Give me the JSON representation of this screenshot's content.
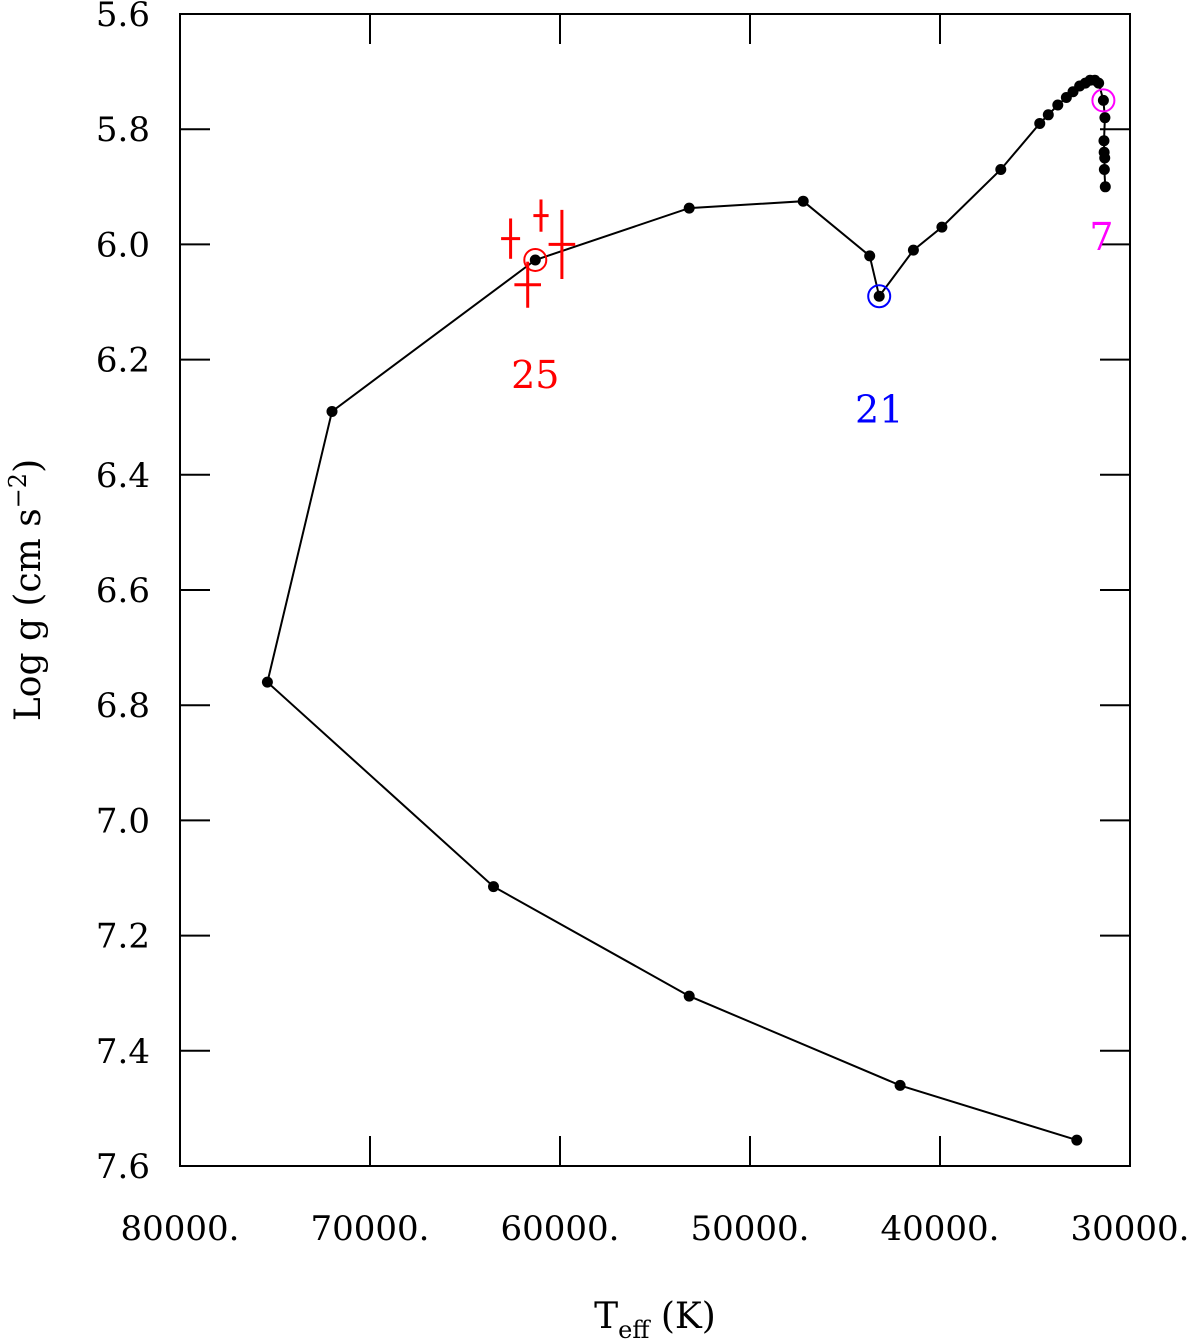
{
  "chart_data": {
    "type": "scatter",
    "title": "",
    "xlabel": {
      "main": "T",
      "sub": "eff",
      "rest": " (K)"
    },
    "ylabel": {
      "main": "Log g  (cm s",
      "sup": "−2",
      "rest": ")"
    },
    "xlim": [
      80000,
      30000
    ],
    "ylim": [
      5.6,
      7.6
    ],
    "y_inverted": true,
    "x_ticks": [
      80000,
      70000,
      60000,
      50000,
      40000,
      30000
    ],
    "x_tick_labels": [
      "80000.",
      "70000.",
      "60000.",
      "50000.",
      "40000.",
      "30000."
    ],
    "y_ticks": [
      5.6,
      5.8,
      6.0,
      6.2,
      6.4,
      6.6,
      6.8,
      7.0,
      7.2,
      7.4,
      7.6
    ],
    "y_tick_labels": [
      "5.6",
      "5.8",
      "6.0",
      "6.2",
      "6.4",
      "6.6",
      "6.8",
      "7.0",
      "7.2",
      "7.4",
      "7.6"
    ],
    "series": [
      {
        "style": "line-with-points",
        "color": "#000000",
        "points": [
          [
            31300,
            5.9
          ],
          [
            31350,
            5.87
          ],
          [
            31330,
            5.85
          ],
          [
            31360,
            5.84
          ],
          [
            31370,
            5.82
          ],
          [
            31320,
            5.78
          ],
          [
            31400,
            5.75
          ],
          [
            31650,
            5.72
          ],
          [
            31850,
            5.715
          ],
          [
            32100,
            5.715
          ],
          [
            32350,
            5.72
          ],
          [
            32650,
            5.725
          ],
          [
            33000,
            5.735
          ],
          [
            33350,
            5.745
          ],
          [
            33800,
            5.758
          ],
          [
            34300,
            5.775
          ],
          [
            34750,
            5.79
          ],
          [
            36800,
            5.87
          ],
          [
            39900,
            5.97
          ],
          [
            41400,
            6.01
          ],
          [
            43200,
            6.09
          ],
          [
            43700,
            6.02
          ],
          [
            47200,
            5.925
          ],
          [
            53200,
            5.937
          ],
          [
            61300,
            6.027
          ],
          [
            72000,
            6.29
          ],
          [
            75400,
            6.76
          ],
          [
            63500,
            7.115
          ],
          [
            53200,
            7.305
          ],
          [
            42100,
            7.46
          ],
          [
            32800,
            7.555
          ]
        ]
      },
      {
        "name": "",
        "style": "error-crosses",
        "color": "#ff0000",
        "crosses": [
          {
            "x": 62600,
            "y": 5.99,
            "dx": 500,
            "dy": 0.035
          },
          {
            "x": 61000,
            "y": 5.95,
            "dx": 400,
            "dy": 0.028
          },
          {
            "x": 61700,
            "y": 6.07,
            "dx": 700,
            "dy": 0.04
          },
          {
            "x": 59900,
            "y": 6.0,
            "dx": 700,
            "dy": 0.06
          }
        ]
      }
    ],
    "highlights": [
      {
        "x": 61300,
        "y": 6.027,
        "color": "#ff0000",
        "label": "25",
        "label_x": 61300,
        "label_y": 6.225
      },
      {
        "x": 43200,
        "y": 6.09,
        "color": "#0000ff",
        "label": "21",
        "label_x": 43200,
        "label_y": 6.285
      },
      {
        "x": 31400,
        "y": 5.75,
        "color": "#ff00ff",
        "label": "7",
        "label_x": 31500,
        "label_y": 5.985
      }
    ]
  }
}
